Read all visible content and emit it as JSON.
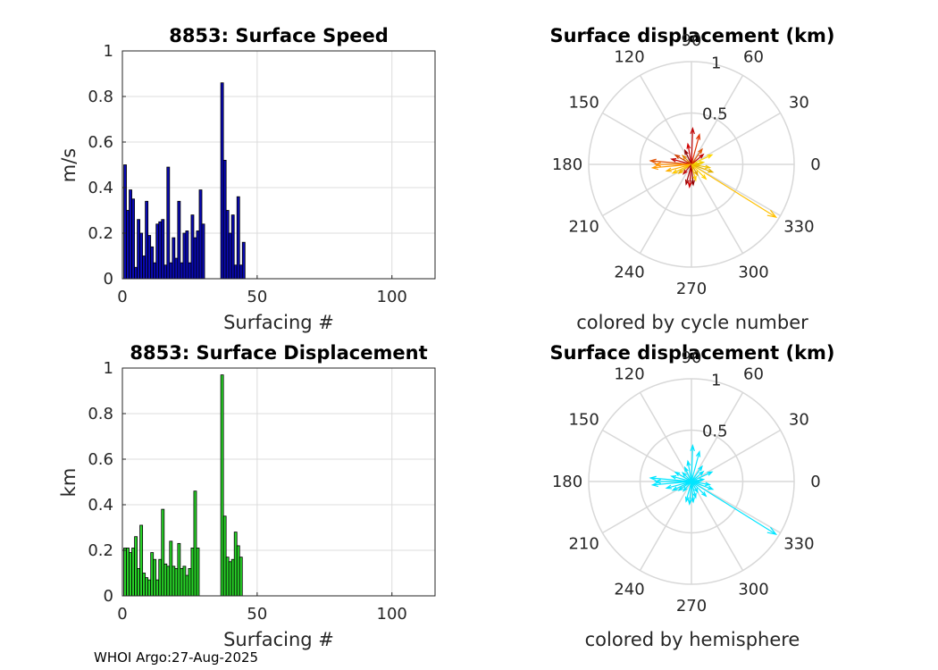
{
  "footer": "WHOI Argo:27-Aug-2025",
  "chart_data": [
    {
      "type": "bar",
      "title": "8853: Surface Speed",
      "xlabel": "Surfacing #",
      "ylabel": "m/s",
      "xlim": [
        0,
        116
      ],
      "ylim": [
        0,
        1
      ],
      "xticks": [
        0,
        50,
        100
      ],
      "yticks": [
        0,
        0.2,
        0.4,
        0.6,
        0.8,
        1
      ],
      "bar_color": "#0a0ab4",
      "series": [
        {
          "name": "speed",
          "x": [
            1,
            2,
            3,
            4,
            5,
            6,
            7,
            8,
            9,
            10,
            11,
            12,
            13,
            14,
            15,
            16,
            17,
            18,
            19,
            20,
            21,
            22,
            23,
            24,
            25,
            26,
            27,
            28,
            29,
            30,
            31,
            32,
            37,
            38,
            39,
            40,
            41,
            42,
            43,
            44,
            45
          ],
          "values": [
            0.5,
            0.3,
            0.39,
            0.35,
            0.05,
            0.26,
            0.2,
            0.1,
            0.34,
            0.19,
            0.14,
            0.07,
            0.24,
            0.25,
            0.26,
            0.06,
            0.49,
            0.07,
            0.18,
            0.09,
            0.34,
            0.07,
            0.2,
            0.21,
            0.07,
            0.28,
            0.18,
            0.21,
            0.39,
            0.24,
            0.0,
            0.0,
            0.86,
            0.52,
            0.3,
            0.2,
            0.28,
            0.06,
            0.36,
            0.06,
            0.16
          ]
        }
      ]
    },
    {
      "type": "polar",
      "title": "Surface displacement (km)",
      "caption": "colored by cycle number",
      "rmax": 1,
      "rticks": [
        0.5,
        1
      ],
      "angle_labels": [
        "0",
        "30",
        "60",
        "90",
        "120",
        "150",
        "180",
        "210",
        "240",
        "270",
        "300",
        "330"
      ],
      "series": [
        {
          "angle": 0,
          "r": 0.08,
          "color": "#e0c000"
        },
        {
          "angle": 10,
          "r": 0.12,
          "color": "#f5d000"
        },
        {
          "angle": 25,
          "r": 0.22,
          "color": "#ffd700"
        },
        {
          "angle": 40,
          "r": 0.15,
          "color": "#c00000"
        },
        {
          "angle": 55,
          "r": 0.18,
          "color": "#e05000"
        },
        {
          "angle": 75,
          "r": 0.3,
          "color": "#e03000"
        },
        {
          "angle": 88,
          "r": 0.35,
          "color": "#c00000"
        },
        {
          "angle": 100,
          "r": 0.2,
          "color": "#d00000"
        },
        {
          "angle": 115,
          "r": 0.15,
          "color": "#900000"
        },
        {
          "angle": 135,
          "r": 0.12,
          "color": "#e08000"
        },
        {
          "angle": 150,
          "r": 0.18,
          "color": "#d04000"
        },
        {
          "angle": 165,
          "r": 0.2,
          "color": "#c00000"
        },
        {
          "angle": 175,
          "r": 0.4,
          "color": "#e05000"
        },
        {
          "angle": 180,
          "r": 0.35,
          "color": "#ff8c00"
        },
        {
          "angle": 185,
          "r": 0.38,
          "color": "#ff9900"
        },
        {
          "angle": 195,
          "r": 0.25,
          "color": "#ffb000"
        },
        {
          "angle": 205,
          "r": 0.2,
          "color": "#ffc800"
        },
        {
          "angle": 215,
          "r": 0.15,
          "color": "#f0b000"
        },
        {
          "angle": 230,
          "r": 0.12,
          "color": "#c01010"
        },
        {
          "angle": 255,
          "r": 0.2,
          "color": "#a00000"
        },
        {
          "angle": 265,
          "r": 0.22,
          "color": "#d00000"
        },
        {
          "angle": 275,
          "r": 0.2,
          "color": "#900000"
        },
        {
          "angle": 285,
          "r": 0.16,
          "color": "#ffcc00"
        },
        {
          "angle": 300,
          "r": 0.12,
          "color": "#e0a000"
        },
        {
          "angle": 315,
          "r": 0.2,
          "color": "#ffd000"
        },
        {
          "angle": 328,
          "r": 0.97,
          "color": "#ffc000"
        },
        {
          "angle": 340,
          "r": 0.22,
          "color": "#e0b000"
        },
        {
          "angle": 350,
          "r": 0.18,
          "color": "#f0c000"
        }
      ]
    },
    {
      "type": "bar",
      "title": "8853: Surface Displacement",
      "xlabel": "Surfacing #",
      "ylabel": "km",
      "xlim": [
        0,
        116
      ],
      "ylim": [
        0,
        1
      ],
      "xticks": [
        0,
        50,
        100
      ],
      "yticks": [
        0,
        0.2,
        0.4,
        0.6,
        0.8,
        1
      ],
      "bar_color": "#28d228",
      "series": [
        {
          "name": "displacement",
          "x": [
            1,
            2,
            3,
            4,
            5,
            6,
            7,
            8,
            9,
            10,
            11,
            12,
            13,
            14,
            15,
            16,
            17,
            18,
            19,
            20,
            21,
            22,
            23,
            24,
            25,
            26,
            27,
            28,
            29,
            30,
            31,
            32,
            37,
            38,
            39,
            40,
            41,
            42,
            43,
            44,
            45
          ],
          "values": [
            0.21,
            0.21,
            0.19,
            0.21,
            0.26,
            0.12,
            0.31,
            0.1,
            0.08,
            0.07,
            0.19,
            0.16,
            0.07,
            0.16,
            0.38,
            0.14,
            0.13,
            0.24,
            0.13,
            0.12,
            0.23,
            0.12,
            0.13,
            0.09,
            0.12,
            0.21,
            0.46,
            0.21,
            0.0,
            0.0,
            0.0,
            0.0,
            0.97,
            0.35,
            0.17,
            0.15,
            0.16,
            0.28,
            0.22,
            0.17,
            0.0
          ]
        }
      ]
    },
    {
      "type": "polar",
      "title": "Surface displacement (km)",
      "caption": "colored by hemisphere",
      "rmax": 1,
      "rticks": [
        0.5,
        1
      ],
      "angle_labels": [
        "0",
        "30",
        "60",
        "90",
        "120",
        "150",
        "180",
        "210",
        "240",
        "270",
        "300",
        "330"
      ],
      "series": [
        {
          "angle": 0,
          "r": 0.08,
          "color": "#00e5ff"
        },
        {
          "angle": 10,
          "r": 0.12,
          "color": "#00e5ff"
        },
        {
          "angle": 25,
          "r": 0.22,
          "color": "#00e5ff"
        },
        {
          "angle": 40,
          "r": 0.15,
          "color": "#00e5ff"
        },
        {
          "angle": 55,
          "r": 0.18,
          "color": "#00e5ff"
        },
        {
          "angle": 75,
          "r": 0.3,
          "color": "#00e5ff"
        },
        {
          "angle": 88,
          "r": 0.35,
          "color": "#00e5ff"
        },
        {
          "angle": 100,
          "r": 0.2,
          "color": "#00e5ff"
        },
        {
          "angle": 115,
          "r": 0.15,
          "color": "#00e5ff"
        },
        {
          "angle": 135,
          "r": 0.12,
          "color": "#00e5ff"
        },
        {
          "angle": 150,
          "r": 0.18,
          "color": "#00e5ff"
        },
        {
          "angle": 165,
          "r": 0.2,
          "color": "#00e5ff"
        },
        {
          "angle": 175,
          "r": 0.4,
          "color": "#00e5ff"
        },
        {
          "angle": 180,
          "r": 0.35,
          "color": "#00e5ff"
        },
        {
          "angle": 185,
          "r": 0.38,
          "color": "#00e5ff"
        },
        {
          "angle": 195,
          "r": 0.25,
          "color": "#00e5ff"
        },
        {
          "angle": 205,
          "r": 0.2,
          "color": "#00e5ff"
        },
        {
          "angle": 215,
          "r": 0.15,
          "color": "#00e5ff"
        },
        {
          "angle": 230,
          "r": 0.12,
          "color": "#00e5ff"
        },
        {
          "angle": 255,
          "r": 0.2,
          "color": "#00e5ff"
        },
        {
          "angle": 265,
          "r": 0.22,
          "color": "#00e5ff"
        },
        {
          "angle": 275,
          "r": 0.2,
          "color": "#00e5ff"
        },
        {
          "angle": 285,
          "r": 0.16,
          "color": "#00e5ff"
        },
        {
          "angle": 300,
          "r": 0.12,
          "color": "#00e5ff"
        },
        {
          "angle": 315,
          "r": 0.2,
          "color": "#00e5ff"
        },
        {
          "angle": 328,
          "r": 0.97,
          "color": "#00e5ff"
        },
        {
          "angle": 340,
          "r": 0.22,
          "color": "#00e5ff"
        },
        {
          "angle": 350,
          "r": 0.18,
          "color": "#00e5ff"
        }
      ]
    }
  ]
}
